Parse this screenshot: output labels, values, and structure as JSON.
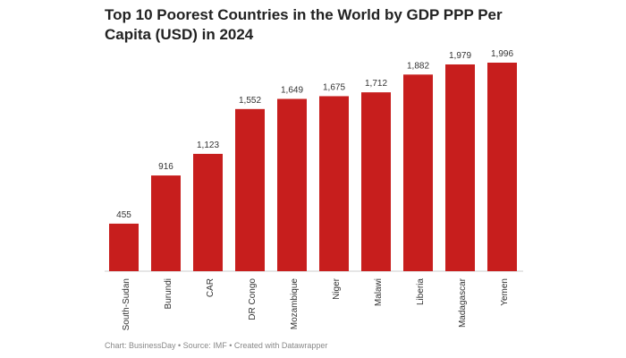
{
  "chart_data": {
    "type": "bar",
    "title_lines": [
      "Top 10 Poorest Countries in the World by GDP PPP Per",
      "Capita (USD) in 2024"
    ],
    "categories": [
      "South-Sudan",
      "Burundi",
      "CAR",
      "DR Congo",
      "Mozambique",
      "Niger",
      "Malawi",
      "Liberia",
      "Madagascar",
      "Yemen"
    ],
    "values": [
      455,
      916,
      1123,
      1552,
      1649,
      1675,
      1712,
      1882,
      1979,
      1996
    ],
    "value_labels": [
      "455",
      "916",
      "1,123",
      "1,552",
      "1,649",
      "1,675",
      "1,712",
      "1,882",
      "1,979",
      "1,996"
    ],
    "color": "#c71e1d",
    "footer": "Chart: BusinessDay • Source: IMF • Created with Datawrapper"
  }
}
